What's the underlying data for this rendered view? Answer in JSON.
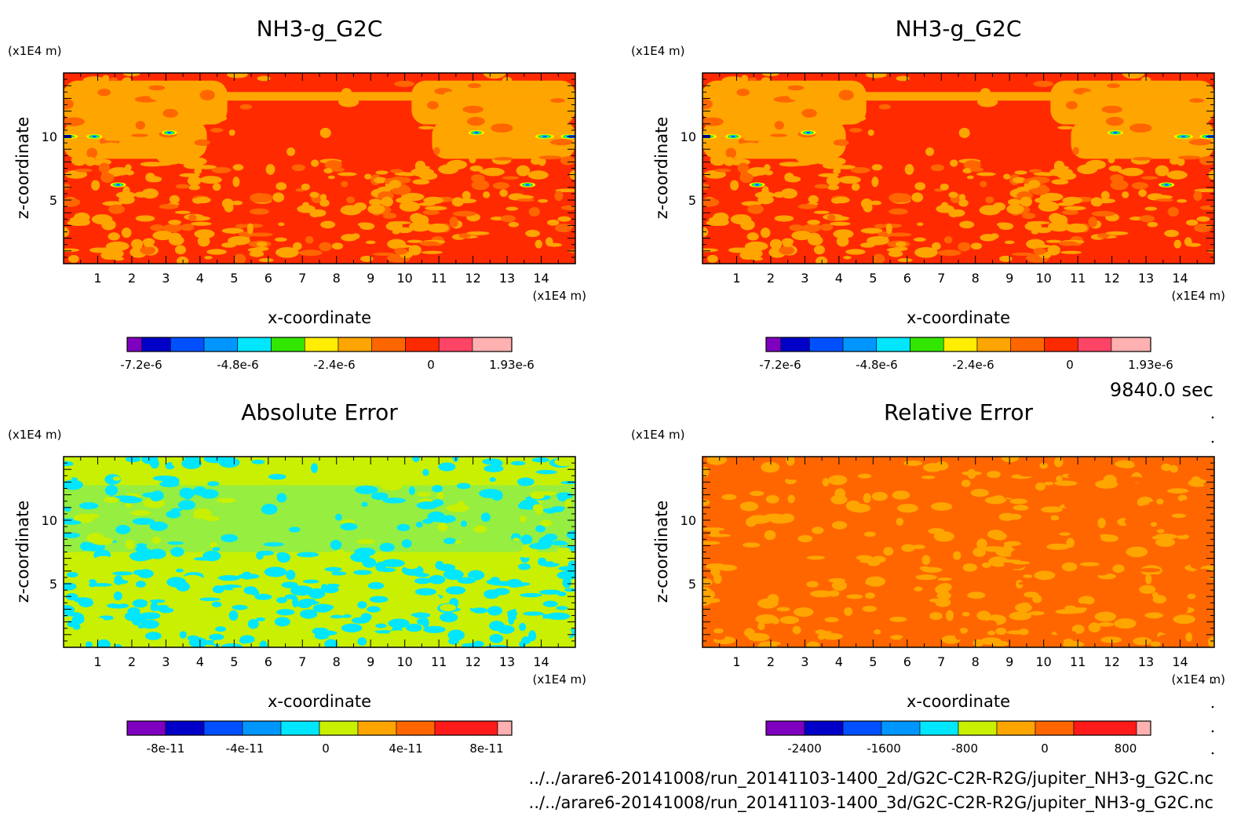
{
  "footer": {
    "time_label": "9840.0 sec",
    "path_2d": "../../arare6-20141008/run_20141103-1400_2d/G2C-C2R-R2G/jupiter_NH3-g_G2C.nc",
    "path_3d": "../../arare6-20141008/run_20141103-1400_3d/G2C-C2R-R2G/jupiter_NH3-g_G2C.nc"
  },
  "colors": {
    "levels_11": [
      "#7f00bf",
      "#0000c8",
      "#0050ff",
      "#0096ff",
      "#00e6ff",
      "#32e600",
      "#ffee00",
      "#ffa500",
      "#ff6600",
      "#ff2a00",
      "#ff4466",
      "#ffb0b0"
    ],
    "levels_10": [
      "#7f00bf",
      "#0000c8",
      "#0050ff",
      "#0096ff",
      "#00e6ff",
      "#c8f000",
      "#ffa500",
      "#ff6600",
      "#ff1a1a",
      "#ffb0b0"
    ]
  },
  "chart_data": [
    {
      "type": "heatmap",
      "title": "NH3-g_G2C",
      "xlabel": "x-coordinate",
      "ylabel": "z-coordinate",
      "x_unit": "(x1E4 m)",
      "y_unit": "(x1E4 m)",
      "xlim": [
        0,
        15
      ],
      "ylim": [
        0,
        15
      ],
      "x_ticks": [
        "1",
        "2",
        "3",
        "4",
        "5",
        "6",
        "7",
        "8",
        "9",
        "10",
        "11",
        "12",
        "13",
        "14"
      ],
      "y_ticks": [
        "5",
        "10"
      ],
      "colorbar_labels": [
        "-7.2e-6",
        "-4.8e-6",
        "-2.4e-6",
        "0",
        "1.93e-6"
      ],
      "colorbar_min": -7.2e-06,
      "colorbar_max": 1.93e-06,
      "background_level": "mostly 0 to 1.93e-6 with features near z=10 and z=6"
    },
    {
      "type": "heatmap",
      "title": "NH3-g_G2C",
      "xlabel": "x-coordinate",
      "ylabel": "z-coordinate",
      "x_unit": "(x1E4 m)",
      "y_unit": "(x1E4 m)",
      "xlim": [
        0,
        15
      ],
      "ylim": [
        0,
        15
      ],
      "x_ticks": [
        "1",
        "2",
        "3",
        "4",
        "5",
        "6",
        "7",
        "8",
        "9",
        "10",
        "11",
        "12",
        "13",
        "14"
      ],
      "y_ticks": [
        "5",
        "10"
      ],
      "colorbar_labels": [
        "-7.2e-6",
        "-4.8e-6",
        "-2.4e-6",
        "0",
        "1.93e-6"
      ],
      "colorbar_min": -7.2e-06,
      "colorbar_max": 1.93e-06
    },
    {
      "type": "heatmap",
      "title": "Absolute Error",
      "xlabel": "x-coordinate",
      "ylabel": "z-coordinate",
      "x_unit": "(x1E4 m)",
      "y_unit": "(x1E4 m)",
      "xlim": [
        0,
        15
      ],
      "ylim": [
        0,
        15
      ],
      "x_ticks": [
        "1",
        "2",
        "3",
        "4",
        "5",
        "6",
        "7",
        "8",
        "9",
        "10",
        "11",
        "12",
        "13",
        "14"
      ],
      "y_ticks": [
        "5",
        "10"
      ],
      "colorbar_labels": [
        "-8e-11",
        "-4e-11",
        "0",
        "4e-11",
        "8e-11"
      ],
      "colorbar_min": -1e-10,
      "colorbar_max": 1e-10
    },
    {
      "type": "heatmap",
      "title": "Relative Error",
      "xlabel": "x-coordinate",
      "ylabel": "z-coordinate",
      "x_unit": "(x1E4 m)",
      "y_unit": "(x1E4 m)",
      "xlim": [
        0,
        15
      ],
      "ylim": [
        0,
        15
      ],
      "x_ticks": [
        "1",
        "2",
        "3",
        "4",
        "5",
        "6",
        "7",
        "8",
        "9",
        "10",
        "11",
        "12",
        "13",
        "14"
      ],
      "y_ticks": [
        "5",
        "10"
      ],
      "colorbar_labels": [
        "-2400",
        "-1600",
        "-800",
        "0",
        "800"
      ],
      "colorbar_min": -2800,
      "colorbar_max": 900
    }
  ]
}
